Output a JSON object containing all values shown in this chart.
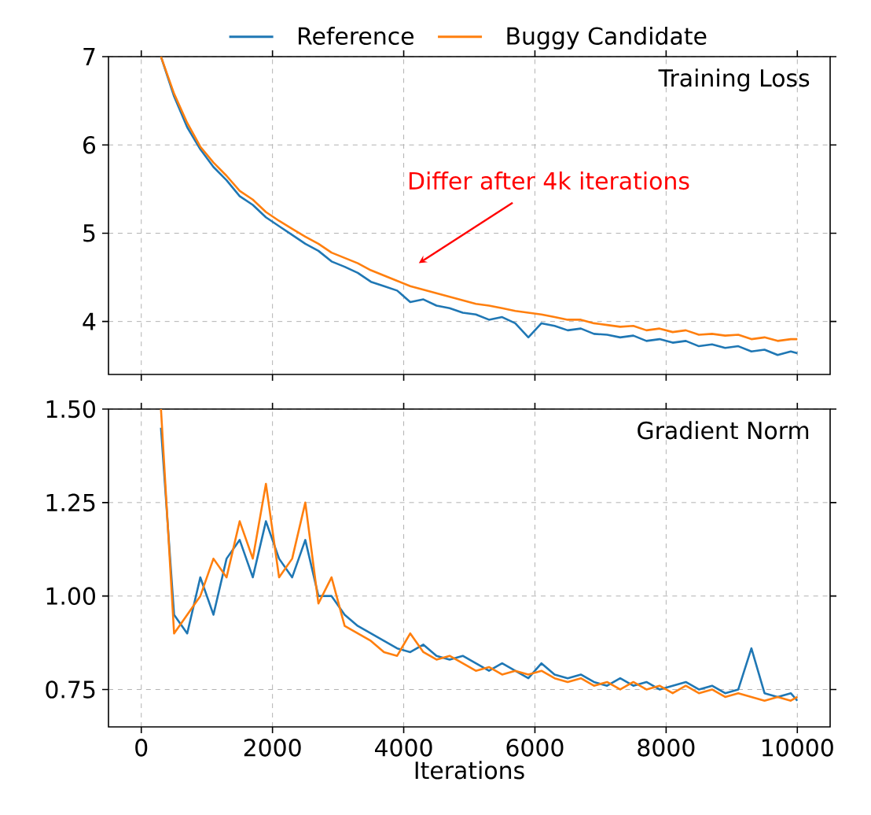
{
  "chart_data": [
    {
      "type": "line",
      "title": "Training Loss",
      "legend": "top",
      "grid": true,
      "tick_labels": "y",
      "xlim": [
        -500,
        10500
      ],
      "ylim": [
        3.4,
        7
      ],
      "xticks": [
        0,
        2000,
        4000,
        6000,
        8000,
        10000
      ],
      "yticks": [
        4,
        5,
        6,
        7
      ],
      "x": [
        300,
        500,
        700,
        900,
        1100,
        1300,
        1500,
        1700,
        1900,
        2100,
        2300,
        2500,
        2700,
        2900,
        3100,
        3300,
        3500,
        3700,
        3900,
        4100,
        4300,
        4500,
        4700,
        4900,
        5100,
        5300,
        5500,
        5700,
        5900,
        6100,
        6300,
        6500,
        6700,
        6900,
        7100,
        7300,
        7500,
        7700,
        7900,
        8100,
        8300,
        8500,
        8700,
        8900,
        9100,
        9300,
        9500,
        9700,
        9900,
        10000
      ],
      "series": [
        {
          "name": "Reference",
          "color": "#1f77b4",
          "values": [
            7.0,
            6.55,
            6.2,
            5.95,
            5.75,
            5.6,
            5.42,
            5.32,
            5.18,
            5.08,
            4.98,
            4.88,
            4.8,
            4.68,
            4.62,
            4.55,
            4.45,
            4.4,
            4.35,
            4.22,
            4.25,
            4.18,
            4.15,
            4.1,
            4.08,
            4.02,
            4.05,
            3.98,
            3.82,
            3.98,
            3.95,
            3.9,
            3.92,
            3.86,
            3.85,
            3.82,
            3.84,
            3.78,
            3.8,
            3.76,
            3.78,
            3.72,
            3.74,
            3.7,
            3.72,
            3.66,
            3.68,
            3.62,
            3.66,
            3.64
          ]
        },
        {
          "name": "Buggy Candidate",
          "color": "#ff7f0e",
          "values": [
            7.0,
            6.58,
            6.25,
            5.98,
            5.8,
            5.65,
            5.48,
            5.38,
            5.24,
            5.14,
            5.05,
            4.96,
            4.88,
            4.78,
            4.72,
            4.66,
            4.58,
            4.52,
            4.46,
            4.4,
            4.36,
            4.32,
            4.28,
            4.24,
            4.2,
            4.18,
            4.15,
            4.12,
            4.1,
            4.08,
            4.05,
            4.02,
            4.02,
            3.98,
            3.96,
            3.94,
            3.95,
            3.9,
            3.92,
            3.88,
            3.9,
            3.85,
            3.86,
            3.84,
            3.85,
            3.8,
            3.82,
            3.78,
            3.8,
            3.8
          ]
        }
      ],
      "annotations": [
        "Differ after 4k iterations"
      ]
    },
    {
      "type": "line",
      "title": "Gradient Norm",
      "xlabel": "Iterations",
      "grid": true,
      "xlim": [
        -500,
        10500
      ],
      "ylim": [
        0.65,
        1.5
      ],
      "xticks": [
        0,
        2000,
        4000,
        6000,
        8000,
        10000
      ],
      "yticks": [
        0.75,
        {
          "value": 1,
          "label": "1.00"
        },
        1.25,
        {
          "value": 1.5,
          "label": "1.50"
        }
      ],
      "x": [
        300,
        500,
        700,
        900,
        1100,
        1300,
        1500,
        1700,
        1900,
        2100,
        2300,
        2500,
        2700,
        2900,
        3100,
        3300,
        3500,
        3700,
        3900,
        4100,
        4300,
        4500,
        4700,
        4900,
        5100,
        5300,
        5500,
        5700,
        5900,
        6100,
        6300,
        6500,
        6700,
        6900,
        7100,
        7300,
        7500,
        7700,
        7900,
        8100,
        8300,
        8500,
        8700,
        8900,
        9100,
        9300,
        9500,
        9700,
        9900,
        10000
      ],
      "series": [
        {
          "color": "#1f77b4",
          "values": [
            1.45,
            0.95,
            0.9,
            1.05,
            0.95,
            1.1,
            1.15,
            1.05,
            1.2,
            1.1,
            1.05,
            1.15,
            1.0,
            1.0,
            0.95,
            0.92,
            0.9,
            0.88,
            0.86,
            0.85,
            0.87,
            0.84,
            0.83,
            0.84,
            0.82,
            0.8,
            0.82,
            0.8,
            0.78,
            0.82,
            0.79,
            0.78,
            0.79,
            0.77,
            0.76,
            0.78,
            0.76,
            0.77,
            0.75,
            0.76,
            0.77,
            0.75,
            0.76,
            0.74,
            0.75,
            0.86,
            0.74,
            0.73,
            0.74,
            0.72
          ]
        },
        {
          "color": "#ff7f0e",
          "values": [
            1.5,
            0.9,
            0.95,
            1.0,
            1.1,
            1.05,
            1.2,
            1.1,
            1.3,
            1.05,
            1.1,
            1.25,
            0.98,
            1.05,
            0.92,
            0.9,
            0.88,
            0.85,
            0.84,
            0.9,
            0.85,
            0.83,
            0.84,
            0.82,
            0.8,
            0.81,
            0.79,
            0.8,
            0.79,
            0.8,
            0.78,
            0.77,
            0.78,
            0.76,
            0.77,
            0.75,
            0.77,
            0.75,
            0.76,
            0.74,
            0.76,
            0.74,
            0.75,
            0.73,
            0.74,
            0.73,
            0.72,
            0.73,
            0.72,
            0.73
          ]
        }
      ]
    }
  ]
}
